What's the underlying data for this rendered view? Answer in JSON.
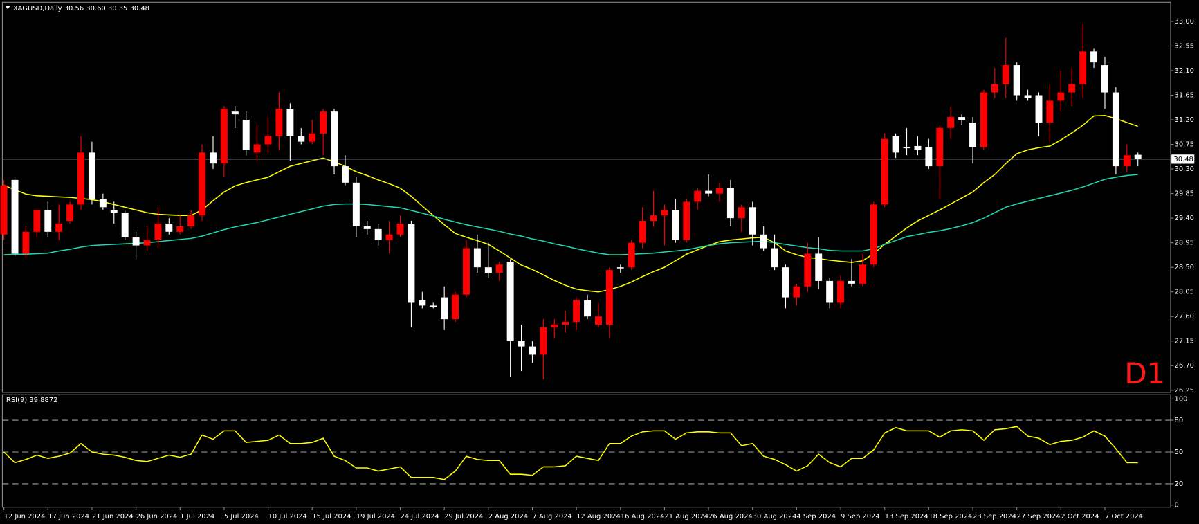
{
  "chart_data": [
    {
      "type": "candlestick",
      "title": "XAGUSD,Daily  30.56 30.60 30.35 30.48",
      "categories": [
        "12 Jun 2024",
        null,
        null,
        null,
        "17 Jun 2024",
        null,
        null,
        null,
        "21 Jun 2024",
        null,
        null,
        null,
        "26 Jun 2024",
        null,
        null,
        null,
        "1 Jul 2024",
        null,
        null,
        null,
        "5 Jul 2024",
        null,
        null,
        null,
        "10 Jul 2024",
        null,
        null,
        null,
        "15 Jul 2024",
        null,
        null,
        null,
        "19 Jul 2024",
        null,
        null,
        null,
        "24 Jul 2024",
        null,
        null,
        null,
        "29 Jul 2024",
        null,
        null,
        null,
        "2 Aug 2024",
        null,
        null,
        null,
        "7 Aug 2024",
        null,
        null,
        null,
        "12 Aug 2024",
        null,
        null,
        null,
        "16 Aug 2024",
        null,
        null,
        null,
        "21 Aug 2024",
        null,
        null,
        null,
        "26 Aug 2024",
        null,
        null,
        null,
        "30 Aug 2024",
        null,
        null,
        null,
        "4 Sep 2024",
        null,
        null,
        null,
        "9 Sep 2024",
        null,
        null,
        null,
        "13 Sep 2024",
        null,
        null,
        null,
        "18 Sep 2024",
        null,
        null,
        null,
        "23 Sep 2024",
        null,
        null,
        null,
        "27 Sep 2024",
        null,
        null,
        null,
        "2 Oct 2024",
        null,
        null,
        null,
        "7 Oct 2024",
        null,
        null,
        null
      ],
      "open": [
        29.1,
        30.1,
        28.75,
        29.15,
        29.55,
        29.15,
        29.35,
        29.65,
        30.6,
        29.75,
        29.55,
        29.5,
        29.05,
        28.9,
        29,
        29.3,
        29.15,
        29.25,
        29.45,
        30.6,
        30.4,
        31.35,
        31.2,
        30.6,
        30.75,
        30.9,
        31.4,
        30.9,
        30.8,
        30.95,
        31.35,
        30.35,
        30.05,
        29.25,
        29.2,
        29,
        29.1,
        29.3,
        27.9,
        27.8,
        27.95,
        27.55,
        28,
        28.85,
        28.5,
        28.4,
        28.6,
        27.15,
        27.05,
        26.9,
        27.4,
        27.45,
        27.5,
        27.9,
        27.45,
        27.45,
        28.5,
        28.5,
        28.95,
        29.35,
        29.45,
        29.55,
        29,
        29.7,
        29.9,
        29.85,
        29.95,
        29.4,
        29.6,
        29.1,
        28.85,
        28.5,
        27.95,
        28.15,
        28.75,
        28.25,
        27.85,
        28.25,
        28.2,
        28.55,
        29.65,
        30.9,
        30.7,
        30.72,
        30.7,
        30.35,
        31.05,
        31.25,
        31.15,
        30.7,
        31.7,
        31.85,
        32.2,
        31.65,
        31.65,
        31.15,
        31.55,
        31.7,
        31.85,
        32.45,
        32.2,
        31.7,
        30.35,
        30.56
      ],
      "high": [
        30.1,
        30.15,
        29.25,
        29.55,
        29.7,
        29.65,
        29.7,
        30.9,
        30.8,
        29.85,
        29.7,
        29.55,
        29.15,
        29.25,
        29.6,
        29.4,
        29.45,
        29.55,
        30.75,
        30.9,
        31.45,
        31.45,
        31.35,
        31.1,
        31.25,
        31.7,
        31.5,
        31.05,
        31.2,
        31.4,
        31.4,
        30.55,
        30.15,
        29.35,
        29.3,
        29.35,
        29.45,
        29.35,
        28.05,
        27.85,
        28.15,
        28.05,
        29,
        29.1,
        28.95,
        28.6,
        28.65,
        27.45,
        27.15,
        27.55,
        27.55,
        27.7,
        27.95,
        28,
        27.85,
        28.5,
        28.55,
        29,
        29.6,
        29.9,
        29.65,
        29.75,
        29.75,
        29.95,
        30.2,
        30.05,
        30.1,
        29.65,
        29.7,
        29.25,
        29.1,
        28.55,
        28.2,
        28.95,
        29.05,
        28.3,
        28.35,
        28.65,
        28.75,
        29.7,
        30.95,
        30.95,
        31.05,
        30.9,
        30.85,
        31.1,
        31.45,
        31.3,
        31.25,
        31.75,
        32.15,
        32.7,
        32.25,
        31.75,
        31.7,
        31.85,
        32.1,
        32.15,
        32.95,
        32.5,
        32.35,
        31.8,
        30.75,
        30.6
      ],
      "low": [
        29,
        28.7,
        28.68,
        29.05,
        29.05,
        29,
        29.3,
        29.55,
        29.65,
        29.55,
        29.3,
        29,
        28.65,
        28.8,
        28.85,
        29.1,
        29.1,
        29.2,
        29.35,
        30.3,
        30.15,
        31.05,
        30.55,
        30.45,
        30.6,
        30.65,
        30.45,
        30.75,
        30.75,
        30.55,
        30.2,
        30,
        29.05,
        29.1,
        28.9,
        28.75,
        29.05,
        27.4,
        27.75,
        27.75,
        27.35,
        27.5,
        27.95,
        28.4,
        28.3,
        28.25,
        26.5,
        26.6,
        26.75,
        26.45,
        27.2,
        27.3,
        27.35,
        27.55,
        27.4,
        27.2,
        28.4,
        28.45,
        28.85,
        29.25,
        28.9,
        28.95,
        28.95,
        29.55,
        29.8,
        29.7,
        29.25,
        29.15,
        28.9,
        28.8,
        28.45,
        27.75,
        27.8,
        28.05,
        28.1,
        27.75,
        27.75,
        28.15,
        28.15,
        28.5,
        29.6,
        30.5,
        30.55,
        30.55,
        30.3,
        29.75,
        30.85,
        31.1,
        30.4,
        30.65,
        31.6,
        31.6,
        31.55,
        31.55,
        30.9,
        30.8,
        31.35,
        31.45,
        31.6,
        32.15,
        31.4,
        30.2,
        30.25,
        30.35
      ],
      "close": [
        30,
        28.75,
        29.15,
        29.55,
        29.15,
        29.3,
        29.65,
        30.6,
        29.75,
        29.6,
        29.5,
        29.05,
        28.9,
        29,
        29.3,
        29.15,
        29.25,
        29.45,
        30.6,
        30.4,
        31.4,
        31.3,
        30.65,
        30.75,
        30.9,
        31.4,
        30.9,
        30.8,
        30.95,
        31.35,
        30.35,
        30.05,
        29.25,
        29.2,
        29,
        29.1,
        29.3,
        27.85,
        27.8,
        27.78,
        27.55,
        28,
        28.85,
        28.5,
        28.4,
        28.55,
        27.15,
        27.05,
        26.9,
        27.4,
        27.45,
        27.5,
        27.9,
        27.6,
        27.6,
        28.45,
        28.48,
        28.95,
        29.35,
        29.45,
        29.55,
        29,
        29.7,
        29.9,
        29.85,
        29.95,
        29.4,
        29.6,
        29.1,
        28.85,
        28.5,
        27.95,
        28.15,
        28.75,
        28.25,
        27.85,
        28.25,
        28.2,
        28.55,
        29.65,
        30.85,
        30.6,
        30.68,
        30.65,
        30.35,
        31.05,
        31.25,
        31.2,
        30.7,
        31.7,
        31.85,
        32.2,
        31.65,
        31.6,
        31.15,
        31.55,
        31.7,
        31.85,
        32.45,
        32.25,
        31.7,
        30.35,
        30.55,
        30.48
      ],
      "up_color": "#ff0000",
      "down_color": "#ffffff",
      "lines": [
        {
          "color": "#ffff00",
          "values": [
            30,
            29.92,
            29.84,
            29.81,
            29.8,
            29.79,
            29.78,
            29.76,
            29.74,
            29.7,
            29.65,
            29.6,
            29.55,
            29.5,
            29.47,
            29.46,
            29.45,
            29.45,
            29.55,
            29.72,
            29.88,
            29.99,
            30.05,
            30.1,
            30.15,
            30.25,
            30.35,
            30.4,
            30.45,
            30.5,
            30.43,
            30.35,
            30.25,
            30.18,
            30.1,
            30.03,
            29.95,
            29.8,
            29.62,
            29.45,
            29.28,
            29.12,
            29.05,
            28.99,
            28.92,
            28.8,
            28.67,
            28.54,
            28.46,
            28.36,
            28.26,
            28.17,
            28.1,
            28.07,
            28.05,
            28.09,
            28.15,
            28.23,
            28.33,
            28.42,
            28.5,
            28.62,
            28.74,
            28.82,
            28.9,
            28.97,
            29,
            29.02,
            29.04,
            29.05,
            28.95,
            28.8,
            28.73,
            28.68,
            28.66,
            28.63,
            28.61,
            28.59,
            28.62,
            28.75,
            28.92,
            29.07,
            29.22,
            29.35,
            29.45,
            29.55,
            29.66,
            29.77,
            29.88,
            30.05,
            30.2,
            30.4,
            30.58,
            30.65,
            30.69,
            30.72,
            30.83,
            30.96,
            31.1,
            31.27,
            31.28,
            31.22,
            31.15,
            31.08
          ]
        },
        {
          "color": "#20d8b0",
          "values": [
            28.73,
            28.74,
            28.74,
            28.75,
            28.76,
            28.8,
            28.83,
            28.87,
            28.9,
            28.91,
            28.92,
            28.93,
            28.94,
            28.95,
            28.97,
            28.99,
            29.01,
            29.03,
            29.07,
            29.13,
            29.19,
            29.24,
            29.28,
            29.32,
            29.37,
            29.42,
            29.47,
            29.52,
            29.57,
            29.62,
            29.65,
            29.66,
            29.66,
            29.65,
            29.63,
            29.61,
            29.59,
            29.54,
            29.49,
            29.44,
            29.38,
            29.33,
            29.28,
            29.24,
            29.2,
            29.16,
            29.11,
            29.07,
            29.02,
            28.98,
            28.93,
            28.89,
            28.84,
            28.8,
            28.76,
            28.73,
            28.73,
            28.74,
            28.75,
            28.76,
            28.78,
            28.8,
            28.82,
            28.86,
            28.9,
            28.93,
            28.95,
            28.96,
            28.97,
            28.98,
            28.95,
            28.92,
            28.89,
            28.86,
            28.84,
            28.81,
            28.8,
            28.8,
            28.8,
            28.84,
            28.92,
            28.99,
            29.06,
            29.1,
            29.14,
            29.17,
            29.21,
            29.26,
            29.32,
            29.4,
            29.5,
            29.6,
            29.66,
            29.71,
            29.76,
            29.81,
            29.86,
            29.91,
            29.97,
            30.04,
            30.11,
            30.15,
            30.18,
            30.2
          ]
        }
      ],
      "current_price": 30.48,
      "price_line_color": "#8a8fa0",
      "annotation": "D1",
      "annotation_color": "#ff1a1a",
      "ylim": [
        26.21,
        33.35
      ],
      "yticks": [
        26.25,
        {
          "value": 26.7,
          "label": "26.70"
        },
        27.15,
        {
          "value": 27.6,
          "label": "27.60"
        },
        28.05,
        {
          "value": 28.5,
          "label": "28.50"
        },
        28.95,
        {
          "value": 29.4,
          "label": "29.40"
        },
        29.85,
        {
          "value": 30.3,
          "label": "30.30"
        },
        30.75,
        {
          "value": 31.2,
          "label": "31.20"
        },
        31.65,
        {
          "value": 32.1,
          "label": "32.10"
        },
        32.55,
        {
          "value": 33,
          "label": "33.00"
        }
      ]
    },
    {
      "type": "line",
      "title": "RSI(9) 39.8872",
      "color": "#ffff00",
      "values": [
        50,
        40,
        43,
        47,
        44,
        46,
        49,
        58,
        50,
        48,
        47,
        45,
        42,
        41,
        44,
        47,
        45,
        48,
        66,
        62,
        70,
        70,
        59,
        60,
        61,
        66,
        58,
        58,
        59,
        63,
        46,
        42,
        35,
        35,
        32,
        34,
        36,
        26,
        26,
        26,
        24,
        32,
        46,
        43,
        42,
        42,
        29,
        29,
        28,
        36,
        36,
        37,
        46,
        44,
        42,
        58,
        58,
        65,
        69,
        70,
        70,
        62,
        68,
        69,
        69,
        68,
        68,
        56,
        58,
        46,
        43,
        38,
        32,
        37,
        48,
        40,
        36,
        44,
        44,
        52,
        68,
        73,
        70,
        70,
        70,
        64,
        70,
        71,
        70,
        61,
        71,
        72,
        74,
        65,
        63,
        57,
        60,
        61,
        64,
        70,
        65,
        53,
        40,
        39.8872
      ],
      "ylim": [
        -2,
        104
      ],
      "yticks": [
        0,
        20,
        50,
        80,
        100
      ],
      "levels": [
        20,
        50,
        80
      ]
    }
  ]
}
